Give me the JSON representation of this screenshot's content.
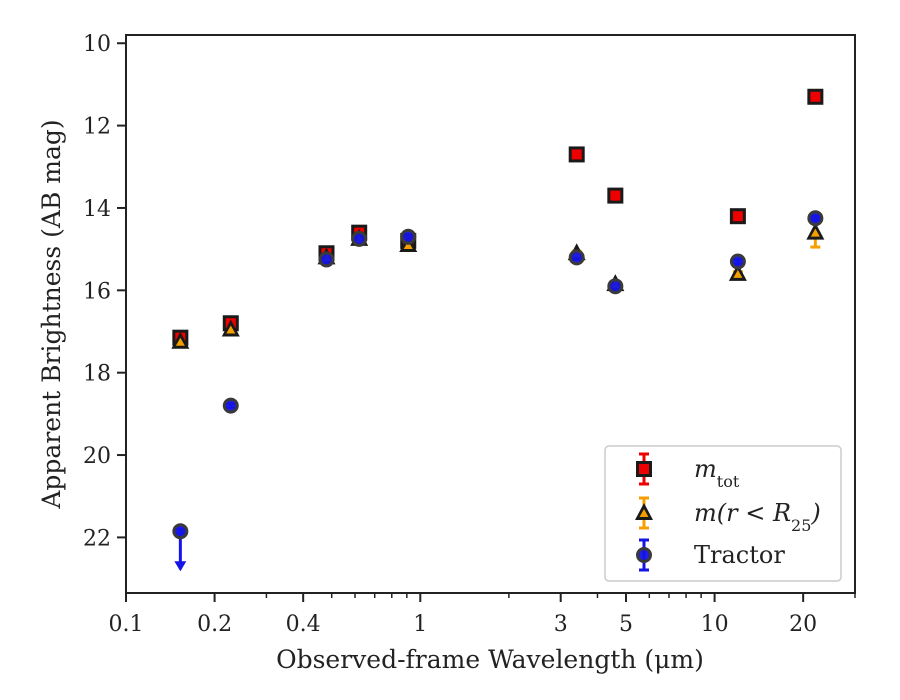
{
  "chart_data": {
    "type": "scatter",
    "xlabel": "Observed-frame Wavelength (μm)",
    "ylabel": "Apparent Brightness (AB mag)",
    "x_scale": "log",
    "xlim": [
      0.1,
      30
    ],
    "ylim": [
      23.35,
      9.8
    ],
    "y_inverted": true,
    "x_ticks": [
      {
        "value": 0.1,
        "label": "0.1"
      },
      {
        "value": 0.2,
        "label": "0.2"
      },
      {
        "value": 0.4,
        "label": "0.4"
      },
      {
        "value": 1,
        "label": "1"
      },
      {
        "value": 3,
        "label": "3"
      },
      {
        "value": 5,
        "label": "5"
      },
      {
        "value": 10,
        "label": "10"
      },
      {
        "value": 20,
        "label": "20"
      }
    ],
    "y_ticks": [
      {
        "value": 10,
        "label": "10"
      },
      {
        "value": 12,
        "label": "12"
      },
      {
        "value": 14,
        "label": "14"
      },
      {
        "value": 16,
        "label": "16"
      },
      {
        "value": 18,
        "label": "18"
      },
      {
        "value": 20,
        "label": "20"
      },
      {
        "value": 22,
        "label": "22"
      }
    ],
    "legend": {
      "position": "lower right",
      "entries": [
        {
          "series": 0,
          "pre": "m",
          "sub": "tot",
          "post": ""
        },
        {
          "series": 1,
          "pre": "m(r < R",
          "sub": "25",
          "post": ")"
        },
        {
          "series": 2,
          "pre": "Tractor",
          "sub": "",
          "post": ""
        }
      ]
    },
    "series": [
      {
        "marker": "square",
        "color": "#ee0000",
        "edge": "#1a1a1a",
        "points": [
          {
            "x": 0.153,
            "y": 17.15,
            "err": 0.15
          },
          {
            "x": 0.227,
            "y": 16.8,
            "err": 0.15
          },
          {
            "x": 0.48,
            "y": 15.1,
            "err": 0.08
          },
          {
            "x": 0.62,
            "y": 14.6,
            "err": 0.08
          },
          {
            "x": 0.91,
            "y": 14.8,
            "err": 0.08
          },
          {
            "x": 3.4,
            "y": 12.7,
            "err": 0.05
          },
          {
            "x": 4.6,
            "y": 13.7,
            "err": 0.05
          },
          {
            "x": 12.0,
            "y": 14.2,
            "err": 0.05
          },
          {
            "x": 22.0,
            "y": 11.3,
            "err": 0.05
          }
        ]
      },
      {
        "marker": "triangle",
        "color": "#f5a000",
        "edge": "#1a1a1a",
        "points": [
          {
            "x": 0.153,
            "y": 17.25,
            "err": 0.1
          },
          {
            "x": 0.227,
            "y": 16.95,
            "err": 0.1
          },
          {
            "x": 0.48,
            "y": 15.2,
            "err": 0.08
          },
          {
            "x": 0.62,
            "y": 14.75,
            "err": 0.08
          },
          {
            "x": 0.91,
            "y": 14.9,
            "err": 0.08
          },
          {
            "x": 3.4,
            "y": 15.1,
            "err": 0.05
          },
          {
            "x": 4.6,
            "y": 15.85,
            "err": 0.05
          },
          {
            "x": 12.0,
            "y": 15.6,
            "err": 0.05
          },
          {
            "x": 22.0,
            "y": 14.6,
            "err": 0.35
          }
        ]
      },
      {
        "marker": "circle",
        "color": "#1414e6",
        "edge": "#3a3a3a",
        "points": [
          {
            "x": 0.153,
            "y": 21.85,
            "err": 0.05,
            "upper_limit": true
          },
          {
            "x": 0.227,
            "y": 18.8,
            "err": 0.05
          },
          {
            "x": 0.48,
            "y": 15.25,
            "err": 0.05
          },
          {
            "x": 0.62,
            "y": 14.75,
            "err": 0.05
          },
          {
            "x": 0.91,
            "y": 14.7,
            "err": 0.05
          },
          {
            "x": 3.4,
            "y": 15.2,
            "err": 0.05
          },
          {
            "x": 4.6,
            "y": 15.9,
            "err": 0.05
          },
          {
            "x": 12.0,
            "y": 15.3,
            "err": 0.05
          },
          {
            "x": 22.0,
            "y": 14.25,
            "err": 0.05
          }
        ]
      }
    ]
  }
}
